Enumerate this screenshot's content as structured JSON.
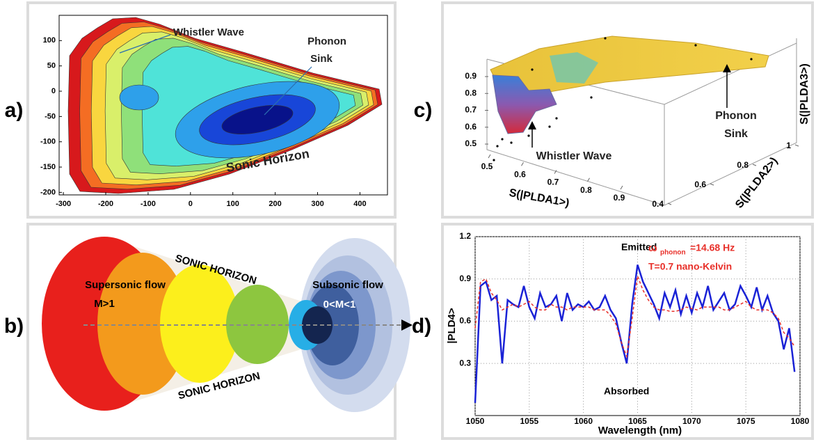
{
  "panel_labels": [
    "a)",
    "b)",
    "c)",
    "d)"
  ],
  "diagram": {
    "sonic_horizon_top": "SONIC HORIZON",
    "sonic_horizon_bottom": "SONIC HORIZON",
    "supersonic": "Supersonic flow",
    "supersonic_mach": "M>1",
    "subsonic": "Subsonic flow",
    "subsonic_mach": "0<M<1"
  },
  "chart_data": [
    {
      "type": "contour",
      "xlim": [
        -310,
        465
      ],
      "xticks": [
        -300,
        -200,
        -100,
        0,
        100,
        200,
        300,
        400
      ],
      "ylim": [
        -205,
        150
      ],
      "yticks": [
        -200,
        -150,
        -100,
        -50,
        0,
        50,
        100
      ],
      "annotations": [
        "Whistler Wave",
        "Phonon",
        "Sink",
        "Sonic Horizon"
      ]
    },
    {
      "type": "surface",
      "xlabel": "S(|PLDA1>)",
      "ylabel": "S(|PLDA2>)",
      "zlabel": "S(|PLDA3>)",
      "xlim": [
        0.5,
        0.9
      ],
      "xticks": [
        0.5,
        0.6,
        0.7,
        0.8,
        0.9
      ],
      "ylim": [
        0.4,
        1
      ],
      "yticks": [
        0.4,
        0.6,
        0.8,
        1
      ],
      "zlim": [
        0.5,
        0.9
      ],
      "zticks": [
        0.5,
        0.6,
        0.7,
        0.8,
        0.9
      ],
      "annotations": [
        "Whistler Wave",
        "Phonon",
        "Sink"
      ]
    },
    {
      "type": "line",
      "xlabel": "Wavelength (nm)",
      "ylabel": "|PLD4>",
      "xlim": [
        1050,
        1080
      ],
      "xticks": [
        1050,
        1055,
        1060,
        1065,
        1070,
        1075,
        1080
      ],
      "ylim": [
        -0.07,
        1.2
      ],
      "yticks": [
        0.3,
        0.6,
        0.9,
        1.2
      ],
      "grid": true,
      "x": [
        1050,
        1050.5,
        1051,
        1051.5,
        1052,
        1052.5,
        1053,
        1053.5,
        1054,
        1054.5,
        1055,
        1055.5,
        1056,
        1056.5,
        1057,
        1057.5,
        1058,
        1058.5,
        1059,
        1059.5,
        1060,
        1060.5,
        1061,
        1061.5,
        1062,
        1062.5,
        1063,
        1063.5,
        1064,
        1064.5,
        1065,
        1065.5,
        1066,
        1066.5,
        1067,
        1067.5,
        1068,
        1068.5,
        1069,
        1069.5,
        1070,
        1070.5,
        1071,
        1071.5,
        1072,
        1072.5,
        1073,
        1073.5,
        1074,
        1074.5,
        1075,
        1075.5,
        1076,
        1076.5,
        1077,
        1077.5,
        1078,
        1078.5,
        1079,
        1079.5
      ],
      "series": [
        {
          "color": "#1a22d6",
          "line_style": "solid",
          "values": [
            0.02,
            0.85,
            0.88,
            0.75,
            0.78,
            0.3,
            0.75,
            0.72,
            0.7,
            0.85,
            0.7,
            0.62,
            0.8,
            0.7,
            0.72,
            0.78,
            0.6,
            0.8,
            0.68,
            0.72,
            0.7,
            0.74,
            0.68,
            0.7,
            0.78,
            0.68,
            0.62,
            0.45,
            0.3,
            0.72,
            1.0,
            0.88,
            0.8,
            0.72,
            0.62,
            0.8,
            0.7,
            0.82,
            0.65,
            0.78,
            0.66,
            0.8,
            0.7,
            0.85,
            0.68,
            0.74,
            0.8,
            0.68,
            0.72,
            0.85,
            0.78,
            0.7,
            0.84,
            0.68,
            0.78,
            0.66,
            0.6,
            0.4,
            0.55,
            0.24
          ]
        },
        {
          "color": "#e8302a",
          "line_style": "dashed",
          "values": [
            0.55,
            0.88,
            0.9,
            0.8,
            0.75,
            0.68,
            0.7,
            0.72,
            0.7,
            0.72,
            0.74,
            0.7,
            0.68,
            0.68,
            0.72,
            0.7,
            0.7,
            0.68,
            0.7,
            0.7,
            0.7,
            0.7,
            0.68,
            0.68,
            0.68,
            0.64,
            0.58,
            0.45,
            0.35,
            0.62,
            0.92,
            0.82,
            0.75,
            0.7,
            0.68,
            0.68,
            0.67,
            0.67,
            0.68,
            0.7,
            0.69,
            0.68,
            0.7,
            0.7,
            0.7,
            0.7,
            0.68,
            0.68,
            0.7,
            0.72,
            0.74,
            0.7,
            0.68,
            0.68,
            0.68,
            0.66,
            0.62,
            0.52,
            0.48,
            0.42
          ]
        }
      ],
      "annotations": [
        "Emitted",
        "Absorbed",
        "ω",
        "phonon",
        "=14.68 Hz",
        "T=0.7 nano-Kelvin"
      ]
    }
  ]
}
